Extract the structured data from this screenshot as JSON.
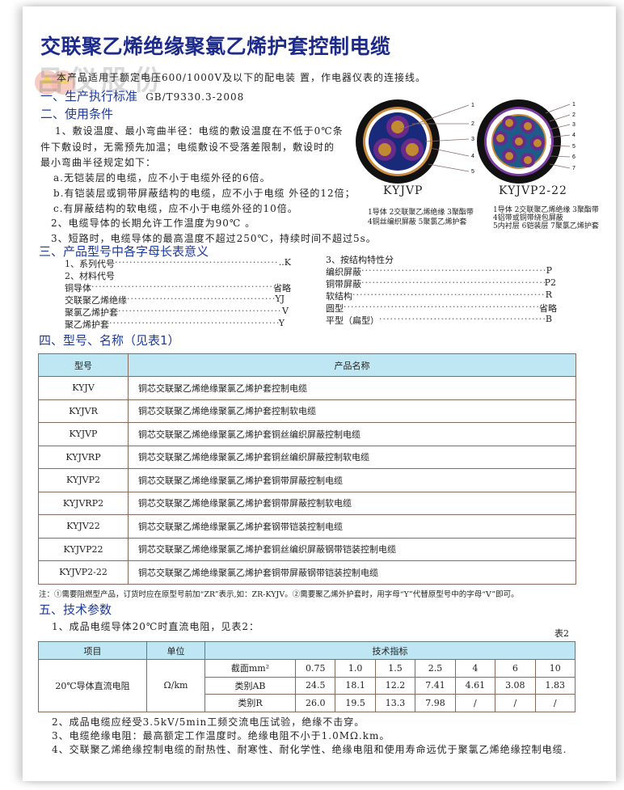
{
  "title": "交联聚乙烯绝缘聚氯乙烯护套控制电缆",
  "watermark": "吕仪股份",
  "intro": "本产品适用于额定电压600/1000V及以下的配电装 置，作电器仪表的连接线。",
  "s1": {
    "heading": "一、生产执行标准",
    "standard": "GB/T9330.3-2008"
  },
  "s2": {
    "heading": "二、使用条件",
    "lines": [
      "1、敷设温度、最小弯曲半径：电缆的敷设温度在不低于0℃条",
      "件下敷设时，无需预先加温；电缆敷设不受落差限制，敷设时的",
      "最小弯曲半径规定如下：",
      "a.无铠装层的电缆，应不小于电缆外径的6倍。",
      "b.有铠装层或铜带屏蔽结构的电缆，应不小于电缆 外径的12倍；",
      "c.有屏蔽结构的软电缆，应不小于电缆外径的10倍。",
      "2、电缆导体的长期允许工作温度为90℃ 。",
      "3、短路时，电缆导体的最高温度不超过250℃，持续时间不超过5s。"
    ]
  },
  "diagrams": [
    {
      "name": "KYJVP",
      "numbers": [
        "1",
        "2",
        "3",
        "4",
        "5"
      ],
      "legend": [
        "1导体 2交联聚乙烯绝缘 3聚酯带",
        "4铜丝编织屏蔽 5聚氯乙烯护套"
      ]
    },
    {
      "name": "KYJVP2-22",
      "numbers": [
        "1",
        "2",
        "3",
        "4",
        "5",
        "6",
        "7"
      ],
      "legend": [
        "1导体 2交联聚乙烯绝缘 3聚酯带",
        "4铝带或铜带绕包屏蔽",
        "5内衬层  6铠装层  7聚氯乙烯护套"
      ]
    }
  ],
  "s3": {
    "heading": "三、产品型号中各字母长表意义",
    "left": [
      {
        "label": "1、系列代号",
        "code": "..K",
        "dots": true
      },
      {
        "label": "2、材料代号",
        "code": "",
        "dots": false
      },
      {
        "label": "铜导体",
        "code": "省略",
        "dots": true
      },
      {
        "label": "交联聚乙烯绝缘",
        "code": "YJ",
        "dots": true
      },
      {
        "label": "聚氯乙烯护套",
        "code": "V",
        "dots": true
      },
      {
        "label": "聚乙烯护套",
        "code": "Y",
        "dots": true
      }
    ],
    "right_title": "3、按结构特性分",
    "right": [
      {
        "label": "编织屏蔽",
        "code": "P"
      },
      {
        "label": "铜带屏蔽",
        "code": "P2"
      },
      {
        "label": "软结构",
        "code": "R"
      },
      {
        "label": "圆型",
        "code": "省略"
      },
      {
        "label": "平型（扁型）",
        "code": "B"
      }
    ]
  },
  "s4": {
    "heading": "四、型号、名称（见表1）",
    "table": {
      "headers": [
        "型号",
        "产品名称"
      ],
      "rows": [
        [
          "KYJV",
          "铜芯交联聚乙烯绝缘聚氯乙烯护套控制电缆"
        ],
        [
          "KYJVR",
          "铜芯交联聚乙烯绝缘聚氯乙烯护套控制软电缆"
        ],
        [
          "KYJVP",
          "铜芯交联聚乙烯绝缘聚氯乙烯护套铜丝编织屏蔽控制电缆"
        ],
        [
          "KYJVRP",
          "铜芯交联聚乙烯绝缘聚氯乙烯护套铜丝编织屏蔽控制软电缆"
        ],
        [
          "KYJVP2",
          "铜芯交联聚乙烯绝缘聚氯乙烯护套铜带屏蔽控制电缆"
        ],
        [
          "KYJVRP2",
          "铜芯交联聚乙烯绝缘聚氯乙烯护套铜带屏蔽控制软电缆"
        ],
        [
          "KYJV22",
          "铜芯交联聚乙烯绝缘聚氯乙烯护套钢带铠装控制电缆"
        ],
        [
          "KYJVP22",
          "铜芯交联聚乙烯绝缘聚氯乙烯护套铜丝编织屏蔽钢带铠装控制电缆"
        ],
        [
          "KYJVP2-22",
          "铜芯交联聚乙烯绝缘聚氯乙烯护套铜带屏蔽钢带铠装控制电缆"
        ]
      ]
    },
    "note": "注：①需要阻燃型产品，订货时应在原型号前加“ZR”表示,如：ZR-KYJV。②需要聚乙烯外护套时，用字母“Y”代替原型号中的字母“V”即可。"
  },
  "s5": {
    "heading": "五、技术参数",
    "p1": "1、成品电缆导体20℃时直流电阻，见表2：",
    "table_label": "表2",
    "table": {
      "headers": [
        "项目",
        "单位",
        "技术指标"
      ],
      "item": "20℃导体直流电阻",
      "unit": "Ω/km",
      "rows": [
        [
          "截面mm²",
          "0.75",
          "1.0",
          "1.5",
          "2.5",
          "4",
          "6",
          "10"
        ],
        [
          "类别AB",
          "24.5",
          "18.1",
          "12.2",
          "7.41",
          "4.61",
          "3.08",
          "1.83"
        ],
        [
          "类别R",
          "26.0",
          "19.5",
          "13.3",
          "7.98",
          "/",
          "/",
          "/"
        ]
      ]
    },
    "p2": "2、成品电缆应经受3.5kV/5min工频交流电压试验，绝缘不击穿。",
    "p3": "3、电缆绝缘电阻：最高额定工作温度时。绝缘电阻不小于1.0MΩ.km。",
    "p4": "4、交联聚乙烯绝缘控制电缆的耐热性、耐寒性、耐化学性、绝缘电阻和使用寿命远优于聚氯乙烯绝缘控制电缆."
  },
  "colors": {
    "heading": "#1c3aa0",
    "title": "#1c2a8c",
    "table_header": "#bfe7f3",
    "table_border": "#8a6a5a"
  }
}
